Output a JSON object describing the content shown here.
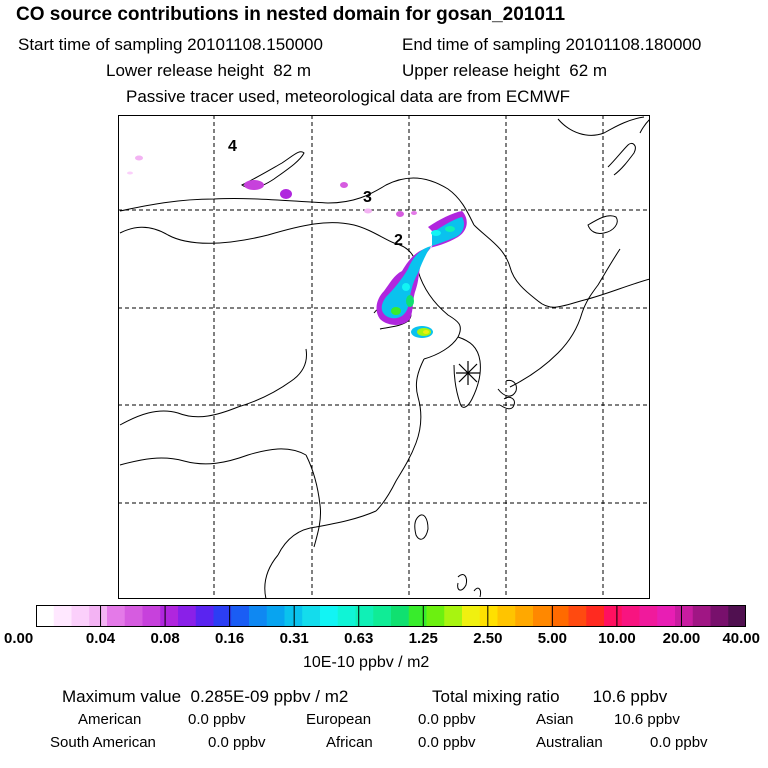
{
  "header": {
    "title": "CO  source contributions in nested domain for gosan_201011",
    "start_label": "Start time of sampling",
    "start_value": "20101108.150000",
    "end_label": "End time of sampling",
    "end_value": "20101108.180000",
    "lower_label": "Lower release height",
    "lower_value": "82 m",
    "upper_label": "Upper release height",
    "upper_value": "62 m",
    "note": "Passive tracer used, meteorological data are from ECMWF"
  },
  "map": {
    "markers": [
      {
        "label": "4"
      },
      {
        "label": "3"
      },
      {
        "label": "2"
      }
    ],
    "receptor_symbol": "asterisk"
  },
  "colorbar": {
    "ticks": [
      "0.00",
      "0.04",
      "0.08",
      "0.16",
      "0.31",
      "0.63",
      "1.25",
      "2.50",
      "5.00",
      "10.00",
      "20.00",
      "40.00"
    ],
    "colors": [
      "#ffffff",
      "#ffe8ff",
      "#fbd0fb",
      "#f3b3f3",
      "#e47ae8",
      "#d65ce0",
      "#c741dc",
      "#b026de",
      "#8a20e8",
      "#5a24f0",
      "#2c3ef4",
      "#1a5df4",
      "#0f88f2",
      "#08a4f0",
      "#0ac2ee",
      "#14dcec",
      "#12f4f4",
      "#10f4d6",
      "#10f0b6",
      "#10ec96",
      "#10e070",
      "#38ec2c",
      "#6cf010",
      "#a8f410",
      "#f0f010",
      "#ffe000",
      "#ffc400",
      "#ffa800",
      "#ff8800",
      "#ff6a00",
      "#ff4a10",
      "#ff2a20",
      "#ff1060",
      "#f81480",
      "#f01a9c",
      "#e81eb4",
      "#c81ca0",
      "#a01684",
      "#78106c",
      "#501050"
    ],
    "units": "10E-10 ppbv / m2"
  },
  "stats": {
    "max_label": "Maximum value",
    "max_value": "0.285E-09 ppbv / m2",
    "total_label": "Total mixing ratio",
    "total_value": "10.6 ppbv",
    "regions": [
      {
        "name": "American",
        "value": "0.0 ppbv"
      },
      {
        "name": "European",
        "value": "0.0 ppbv"
      },
      {
        "name": "Asian",
        "value": "10.6 ppbv"
      },
      {
        "name": "South American",
        "value": "0.0 ppbv"
      },
      {
        "name": "African",
        "value": "0.0 ppbv"
      },
      {
        "name": "Australian",
        "value": "0.0 ppbv"
      }
    ]
  }
}
